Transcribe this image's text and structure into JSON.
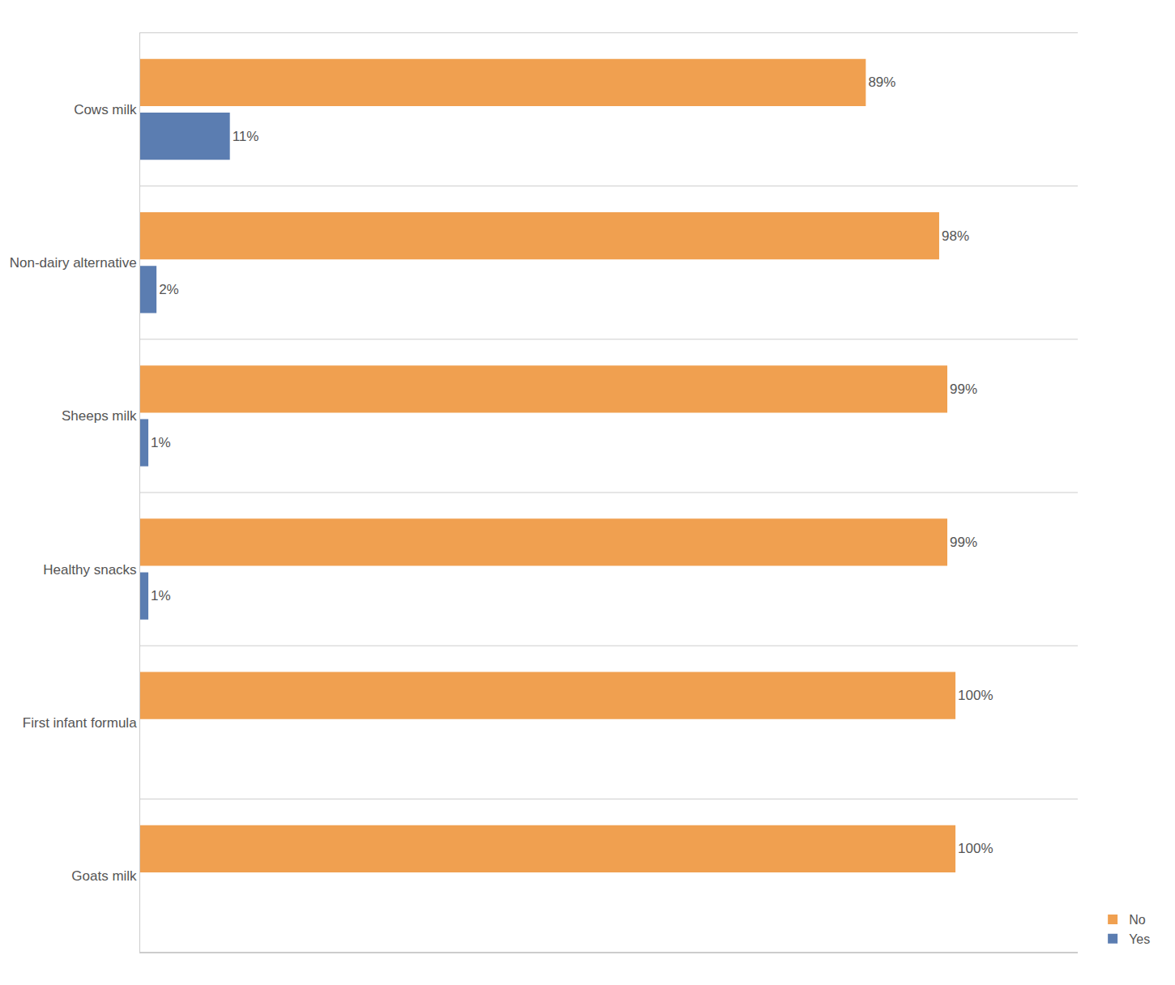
{
  "chart_data": {
    "type": "bar",
    "orientation": "horizontal",
    "categories": [
      "Cows milk",
      "Non-dairy alternative",
      "Sheeps milk",
      "Healthy snacks",
      "First infant formula",
      "Goats milk"
    ],
    "series": [
      {
        "name": "No",
        "color": "#F0A050",
        "values": [
          89,
          98,
          99,
          99,
          100,
          100
        ],
        "value_labels": [
          "89%",
          "98%",
          "99%",
          "99%",
          "100%",
          "100%"
        ]
      },
      {
        "name": "Yes",
        "color": "#5B7DB1",
        "values": [
          11,
          2,
          1,
          1,
          0,
          0
        ],
        "value_labels": [
          "11%",
          "2%",
          "1%",
          "1%",
          null,
          null
        ]
      }
    ],
    "xlim": [
      0,
      115
    ],
    "data_labels": true,
    "tick_labels": "y",
    "grid": true,
    "legend": "lower right"
  }
}
